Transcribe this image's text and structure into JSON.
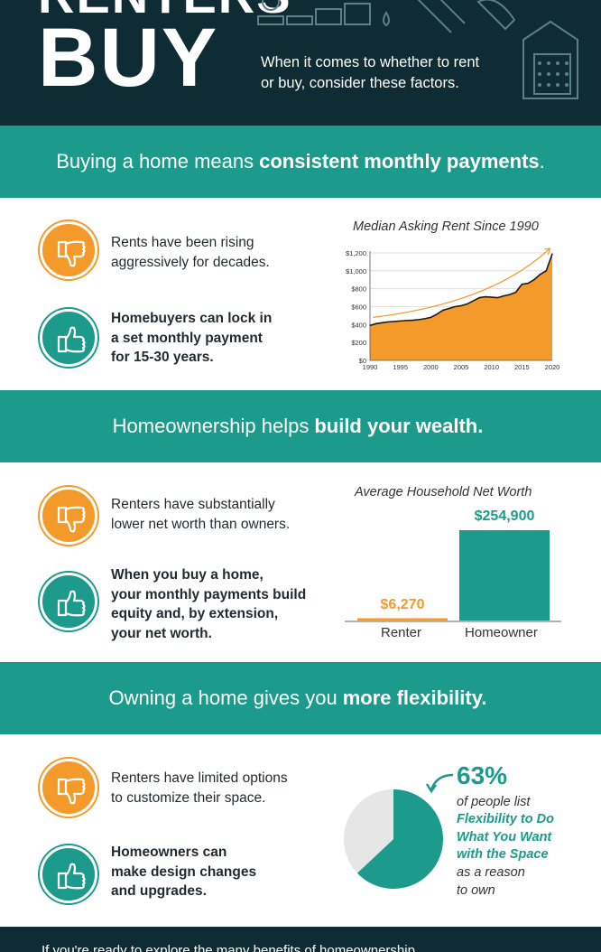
{
  "hero": {
    "title_top": "RENTERS",
    "title_buy": "BUY",
    "subtitle_line1": "When it comes to whether to rent",
    "subtitle_line2": "or buy, consider these factors."
  },
  "sections": [
    {
      "heading_pre": "Buying a home means",
      "heading_bold": "consistent monthly payments",
      "heading_post": ".",
      "down_text": [
        "Rents have been rising",
        "aggressively for decades."
      ],
      "up_text": [
        "Homebuyers can lock in",
        "a set monthly payment",
        "for 15-30 years."
      ]
    },
    {
      "heading_pre": "Homeownership helps",
      "heading_bold": "build your wealth.",
      "heading_post": "",
      "down_text": [
        "Renters have substantially",
        "lower net worth than owners."
      ],
      "up_text": [
        "When you buy a home,",
        "your monthly payments build",
        "equity and, by extension,",
        "your net worth."
      ]
    },
    {
      "heading_pre": "Owning a home gives you",
      "heading_bold": "more flexibility.",
      "heading_post": "",
      "down_text": [
        "Renters have limited options",
        "to customize their space."
      ],
      "up_text": [
        "Homeowners can",
        "make design changes",
        "and upgrades."
      ]
    }
  ],
  "icons": {
    "down": "thumbs-down-icon",
    "up": "thumbs-up-icon"
  },
  "colors": {
    "teal": "#1c9a8b",
    "orange": "#f39a2b",
    "navy": "#0f2b33"
  },
  "chart_data": [
    {
      "type": "area",
      "title": "Median Asking Rent Since 1990",
      "x_ticks": [
        "1990",
        "1995",
        "2000",
        "2005",
        "2010",
        "2015",
        "2020"
      ],
      "y_ticks": [
        "$0",
        "$200",
        "$400",
        "$600",
        "$800",
        "$1,000",
        "$1,200"
      ],
      "ylim": [
        0,
        1200
      ],
      "xlim": [
        1990,
        2020
      ],
      "x": [
        1990,
        1991,
        1992,
        1993,
        1994,
        1995,
        1996,
        1997,
        1998,
        1999,
        2000,
        2001,
        2002,
        2003,
        2004,
        2005,
        2006,
        2007,
        2008,
        2009,
        2010,
        2011,
        2012,
        2013,
        2014,
        2015,
        2016,
        2017,
        2018,
        2019,
        2020
      ],
      "values": [
        390,
        410,
        420,
        430,
        435,
        440,
        445,
        448,
        455,
        465,
        480,
        515,
        560,
        580,
        600,
        610,
        630,
        665,
        700,
        710,
        705,
        700,
        720,
        735,
        760,
        850,
        860,
        900,
        960,
        1000,
        1190
      ],
      "trend_arrow": true,
      "grid": true
    },
    {
      "type": "bar",
      "title": "Average Household Net Worth",
      "categories": [
        "Renter",
        "Homeowner"
      ],
      "values": [
        6270,
        254900
      ],
      "value_labels": [
        "$6,270",
        "$254,900"
      ]
    },
    {
      "type": "pie",
      "values": [
        63,
        37
      ],
      "value_label": "63%",
      "caption_pre": "of people list",
      "caption_em": [
        "Flexibility to Do",
        "What You Want",
        "with the Space"
      ],
      "caption_post": [
        "as a reason",
        "to own"
      ]
    }
  ],
  "footer": {
    "text": "If you're ready to explore the many benefits of homeownership"
  }
}
